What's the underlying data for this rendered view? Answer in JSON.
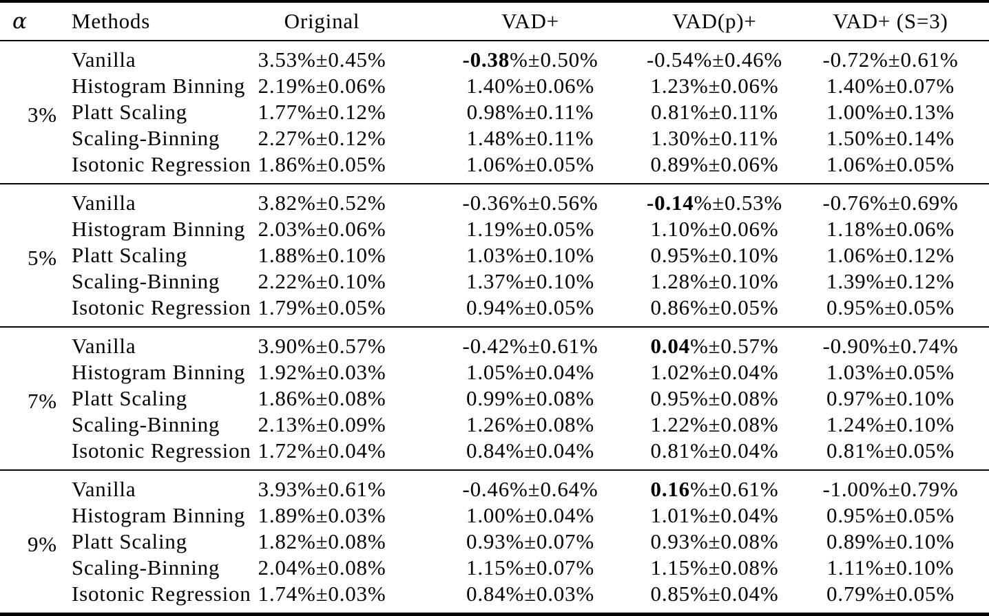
{
  "page": {
    "background_color": "#ffffff",
    "text_color": "#000000"
  },
  "table": {
    "headers": {
      "alpha": "α",
      "methods": "Methods",
      "original": "Original",
      "vad_plus": "VAD+",
      "vad_p_plus": "VAD(p)+",
      "vad_plus_s3": "VAD+ (S=3)"
    },
    "groups": [
      {
        "alpha": "3%",
        "rows": [
          {
            "method": "Vanilla",
            "values": [
              {
                "bold": "",
                "text": "3.53%±0.45%"
              },
              {
                "bold": "-0.38",
                "text": "%±0.50%"
              },
              {
                "bold": "",
                "text": "-0.54%±0.46%"
              },
              {
                "bold": "",
                "text": "-0.72%±0.61%"
              }
            ]
          },
          {
            "method": "Histogram Binning",
            "values": [
              {
                "bold": "",
                "text": "2.19%±0.06%"
              },
              {
                "bold": "",
                "text": "1.40%±0.06%"
              },
              {
                "bold": "",
                "text": "1.23%±0.06%"
              },
              {
                "bold": "",
                "text": "1.40%±0.07%"
              }
            ]
          },
          {
            "method": "Platt Scaling",
            "values": [
              {
                "bold": "",
                "text": "1.77%±0.12%"
              },
              {
                "bold": "",
                "text": "0.98%±0.11%"
              },
              {
                "bold": "",
                "text": "0.81%±0.11%"
              },
              {
                "bold": "",
                "text": "1.00%±0.13%"
              }
            ]
          },
          {
            "method": "Scaling-Binning",
            "values": [
              {
                "bold": "",
                "text": "2.27%±0.12%"
              },
              {
                "bold": "",
                "text": "1.48%±0.11%"
              },
              {
                "bold": "",
                "text": "1.30%±0.11%"
              },
              {
                "bold": "",
                "text": "1.50%±0.14%"
              }
            ]
          },
          {
            "method": "Isotonic Regression",
            "values": [
              {
                "bold": "",
                "text": "1.86%±0.05%"
              },
              {
                "bold": "",
                "text": "1.06%±0.05%"
              },
              {
                "bold": "",
                "text": "0.89%±0.06%"
              },
              {
                "bold": "",
                "text": "1.06%±0.05%"
              }
            ]
          }
        ]
      },
      {
        "alpha": "5%",
        "rows": [
          {
            "method": "Vanilla",
            "values": [
              {
                "bold": "",
                "text": "3.82%±0.52%"
              },
              {
                "bold": "",
                "text": "-0.36%±0.56%"
              },
              {
                "bold": "-0.14",
                "text": "%±0.53%"
              },
              {
                "bold": "",
                "text": "-0.76%±0.69%"
              }
            ]
          },
          {
            "method": "Histogram Binning",
            "values": [
              {
                "bold": "",
                "text": "2.03%±0.06%"
              },
              {
                "bold": "",
                "text": "1.19%±0.05%"
              },
              {
                "bold": "",
                "text": "1.10%±0.06%"
              },
              {
                "bold": "",
                "text": "1.18%±0.06%"
              }
            ]
          },
          {
            "method": "Platt Scaling",
            "values": [
              {
                "bold": "",
                "text": "1.88%±0.10%"
              },
              {
                "bold": "",
                "text": "1.03%±0.10%"
              },
              {
                "bold": "",
                "text": "0.95%±0.10%"
              },
              {
                "bold": "",
                "text": "1.06%±0.12%"
              }
            ]
          },
          {
            "method": "Scaling-Binning",
            "values": [
              {
                "bold": "",
                "text": "2.22%±0.10%"
              },
              {
                "bold": "",
                "text": "1.37%±0.10%"
              },
              {
                "bold": "",
                "text": "1.28%±0.10%"
              },
              {
                "bold": "",
                "text": "1.39%±0.12%"
              }
            ]
          },
          {
            "method": "Isotonic Regression",
            "values": [
              {
                "bold": "",
                "text": "1.79%±0.05%"
              },
              {
                "bold": "",
                "text": "0.94%±0.05%"
              },
              {
                "bold": "",
                "text": "0.86%±0.05%"
              },
              {
                "bold": "",
                "text": "0.95%±0.05%"
              }
            ]
          }
        ]
      },
      {
        "alpha": "7%",
        "rows": [
          {
            "method": "Vanilla",
            "values": [
              {
                "bold": "",
                "text": "3.90%±0.57%"
              },
              {
                "bold": "",
                "text": "-0.42%±0.61%"
              },
              {
                "bold": "0.04",
                "text": "%±0.57%"
              },
              {
                "bold": "",
                "text": "-0.90%±0.74%"
              }
            ]
          },
          {
            "method": "Histogram Binning",
            "values": [
              {
                "bold": "",
                "text": "1.92%±0.03%"
              },
              {
                "bold": "",
                "text": "1.05%±0.04%"
              },
              {
                "bold": "",
                "text": "1.02%±0.04%"
              },
              {
                "bold": "",
                "text": "1.03%±0.05%"
              }
            ]
          },
          {
            "method": "Platt Scaling",
            "values": [
              {
                "bold": "",
                "text": "1.86%±0.08%"
              },
              {
                "bold": "",
                "text": "0.99%±0.08%"
              },
              {
                "bold": "",
                "text": "0.95%±0.08%"
              },
              {
                "bold": "",
                "text": "0.97%±0.10%"
              }
            ]
          },
          {
            "method": "Scaling-Binning",
            "values": [
              {
                "bold": "",
                "text": "2.13%±0.09%"
              },
              {
                "bold": "",
                "text": "1.26%±0.08%"
              },
              {
                "bold": "",
                "text": "1.22%±0.08%"
              },
              {
                "bold": "",
                "text": "1.24%±0.10%"
              }
            ]
          },
          {
            "method": "Isotonic Regression",
            "values": [
              {
                "bold": "",
                "text": "1.72%±0.04%"
              },
              {
                "bold": "",
                "text": "0.84%±0.04%"
              },
              {
                "bold": "",
                "text": "0.81%±0.04%"
              },
              {
                "bold": "",
                "text": "0.81%±0.05%"
              }
            ]
          }
        ]
      },
      {
        "alpha": "9%",
        "rows": [
          {
            "method": "Vanilla",
            "values": [
              {
                "bold": "",
                "text": "3.93%±0.61%"
              },
              {
                "bold": "",
                "text": "-0.46%±0.64%"
              },
              {
                "bold": "0.16",
                "text": "%±0.61%"
              },
              {
                "bold": "",
                "text": "-1.00%±0.79%"
              }
            ]
          },
          {
            "method": "Histogram Binning",
            "values": [
              {
                "bold": "",
                "text": "1.89%±0.03%"
              },
              {
                "bold": "",
                "text": "1.00%±0.04%"
              },
              {
                "bold": "",
                "text": "1.01%±0.04%"
              },
              {
                "bold": "",
                "text": "0.95%±0.05%"
              }
            ]
          },
          {
            "method": "Platt Scaling",
            "values": [
              {
                "bold": "",
                "text": "1.82%±0.08%"
              },
              {
                "bold": "",
                "text": "0.93%±0.07%"
              },
              {
                "bold": "",
                "text": "0.93%±0.08%"
              },
              {
                "bold": "",
                "text": "0.89%±0.10%"
              }
            ]
          },
          {
            "method": "Scaling-Binning",
            "values": [
              {
                "bold": "",
                "text": "2.04%±0.08%"
              },
              {
                "bold": "",
                "text": "1.15%±0.07%"
              },
              {
                "bold": "",
                "text": "1.15%±0.08%"
              },
              {
                "bold": "",
                "text": "1.11%±0.10%"
              }
            ]
          },
          {
            "method": "Isotonic Regression",
            "values": [
              {
                "bold": "",
                "text": "1.74%±0.03%"
              },
              {
                "bold": "",
                "text": "0.84%±0.03%"
              },
              {
                "bold": "",
                "text": "0.85%±0.04%"
              },
              {
                "bold": "",
                "text": "0.79%±0.05%"
              }
            ]
          }
        ]
      }
    ]
  }
}
